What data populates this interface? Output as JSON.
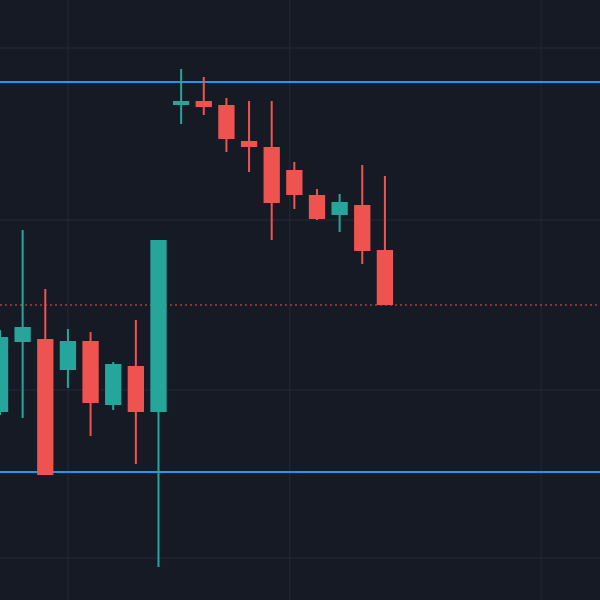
{
  "chart_data": {
    "type": "candlestick",
    "x": [
      0,
      1,
      2,
      3,
      4,
      5,
      6,
      7,
      8,
      9,
      10,
      11,
      12,
      13,
      14,
      15,
      16,
      17
    ],
    "open": [
      188,
      258,
      261,
      230,
      259,
      195,
      234,
      188,
      495,
      499,
      495,
      459,
      453,
      430,
      405,
      385,
      395,
      350
    ],
    "high": [
      270,
      370,
      311,
      271,
      268,
      238,
      280,
      360,
      531,
      523,
      502,
      499,
      499,
      438,
      411,
      406,
      435,
      424
    ],
    "low": [
      185,
      182,
      125,
      212,
      164,
      190,
      136,
      33,
      476,
      485,
      448,
      428,
      360,
      391,
      380,
      368,
      336,
      295
    ],
    "close": [
      263,
      273,
      125,
      259,
      197,
      236,
      188,
      360,
      499,
      493,
      461,
      453,
      397,
      405,
      381,
      398,
      349,
      295
    ],
    "up_color": "#26a69a",
    "down_color": "#ef5350",
    "xlim": [
      0,
      26.5
    ],
    "ylim": [
      0,
      600
    ],
    "xticks": [
      3,
      12.8,
      23.9
    ],
    "yticks": [
      42,
      210,
      380,
      552
    ],
    "grid": true,
    "hlines": [
      {
        "value": 518,
        "color": "#2196f3",
        "style": "solid"
      },
      {
        "value": 128,
        "color": "#2196f3",
        "style": "solid"
      },
      {
        "value": 295,
        "color": "#ef5350",
        "style": "dotted"
      }
    ]
  }
}
